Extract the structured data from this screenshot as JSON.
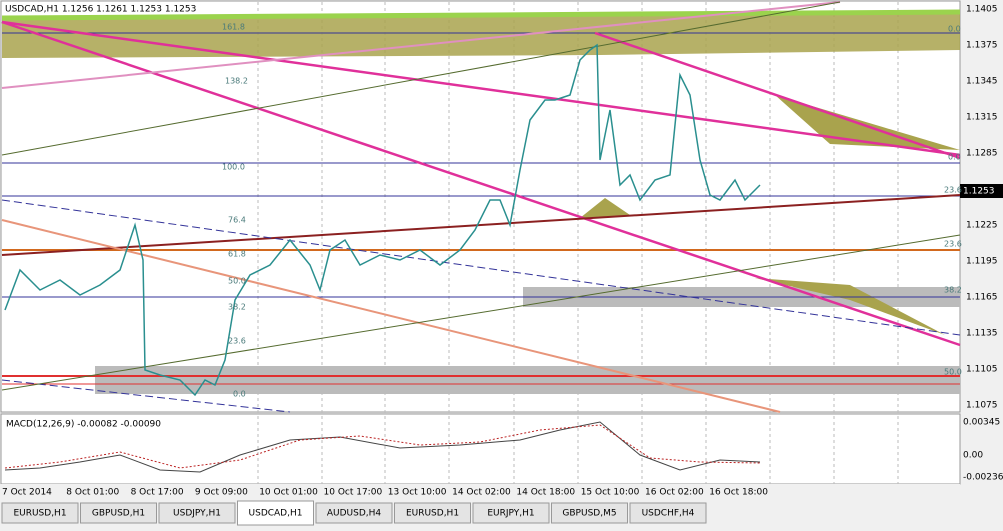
{
  "window": {
    "title": "USDCAD,H1  1.1256 1.1261 1.1253 1.1253"
  },
  "price_axis": {
    "labels": [
      "1.1405",
      "1.1375",
      "1.1345",
      "1.1315",
      "1.1285",
      "1.1225",
      "1.1195",
      "1.1165",
      "1.1135",
      "1.1105",
      "1.1075"
    ],
    "current": "1.1253"
  },
  "macd": {
    "title": "MACD(12,26,9) -0.00082 -0.00090",
    "labels": [
      "0.00345",
      "0.00",
      "-0.00236"
    ]
  },
  "time_axis": {
    "labels": [
      "7 Oct 2014",
      "8 Oct 01:00",
      "8 Oct 17:00",
      "9 Oct 09:00",
      "10 Oct 01:00",
      "10 Oct 17:00",
      "13 Oct 10:00",
      "14 Oct 02:00",
      "14 Oct 18:00",
      "15 Oct 10:00",
      "16 Oct 02:00",
      "16 Oct 18:00"
    ]
  },
  "fib_left": [
    "161.8",
    "138.2",
    "100.0",
    "76.4",
    "61.8",
    "50.0",
    "38.2",
    "23.6",
    "0.0"
  ],
  "fib_right": [
    "0.0",
    "0.0",
    "23.6",
    "23.6",
    "38.2",
    "50.0"
  ],
  "tabs": [
    "EURUSD,H1",
    "GBPUSD,H1",
    "USDJPY,H1",
    "USDCAD,H1",
    "AUDUSD,H4",
    "EURUSD,H1",
    "EURJPY,H1",
    "GBPUSD,M5",
    "USDCHF,H4"
  ]
}
